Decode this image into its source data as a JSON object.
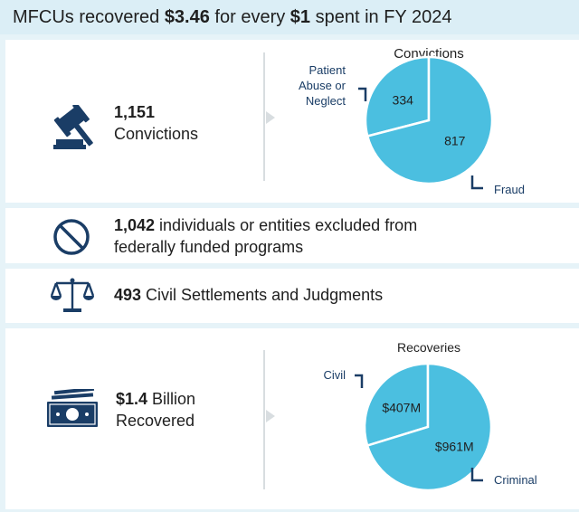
{
  "header": {
    "pre": "MFCUs recovered ",
    "amount": "$3.46",
    "mid": " for every ",
    "unit": "$1",
    "post": " spent in FY 2024"
  },
  "convictions": {
    "number": "1,151",
    "label": "Convictions"
  },
  "exclusions": {
    "number": "1,042",
    "line1": " individuals or entities excluded from",
    "line2": "federally funded programs"
  },
  "civil": {
    "number": "493",
    "label": " Civil Settlements and Judgments"
  },
  "recovered": {
    "number": "$1.4",
    "line1": " Billion",
    "line2": "Recovered"
  },
  "colors": {
    "pie_fill": "#4bbfe0",
    "icon": "#1a3d66",
    "header_bg": "#dbeef6",
    "panel_bg": "#e6f3f8"
  },
  "icons": {
    "convictions": "gavel-icon",
    "exclusions": "prohibited-icon",
    "civil": "scales-icon",
    "recovered": "money-icon"
  },
  "chart_data": [
    {
      "type": "pie",
      "title": "Convictions",
      "categories": [
        "Patient Abuse or Neglect",
        "Fraud"
      ],
      "values": [
        334,
        817
      ],
      "labels": [
        "334",
        "817"
      ],
      "legend_lines": [
        [
          "Patient",
          "Abuse or",
          "Neglect"
        ],
        [
          "Fraud"
        ]
      ]
    },
    {
      "type": "pie",
      "title": "Recoveries",
      "categories": [
        "Civil",
        "Criminal"
      ],
      "values": [
        407,
        961
      ],
      "labels": [
        "$407M",
        "$961M"
      ],
      "legend_lines": [
        [
          "Civil"
        ],
        [
          "Criminal"
        ]
      ]
    }
  ]
}
